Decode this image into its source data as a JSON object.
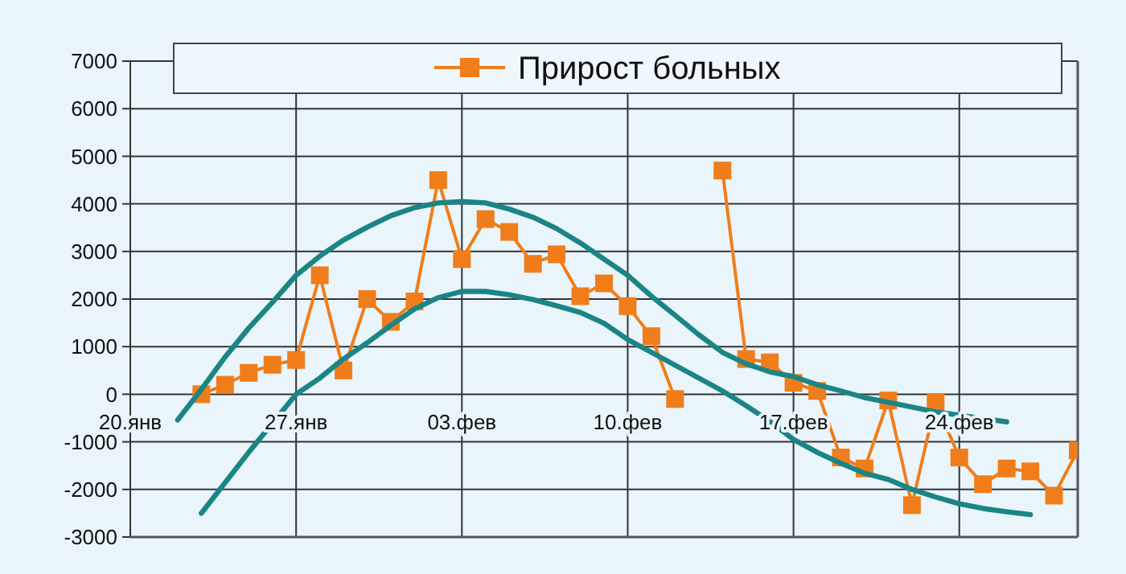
{
  "chart_data": {
    "type": "line",
    "legend": "top",
    "grid": true,
    "ylim": [
      -3000,
      7000
    ],
    "yticks": [
      -3000,
      -2000,
      -1000,
      0,
      1000,
      2000,
      3000,
      4000,
      5000,
      6000,
      7000
    ],
    "xlim": [
      "--01-20",
      "--02-29"
    ],
    "xticks": [
      {
        "value": "--01-20",
        "label": "20.янв"
      },
      {
        "value": "--01-27",
        "label": "27.янв"
      },
      {
        "value": "--02-03",
        "label": "03.фев"
      },
      {
        "value": "--02-10",
        "label": "10.фев"
      },
      {
        "value": "--02-17",
        "label": "17.фев"
      },
      {
        "value": "--02-24",
        "label": "24.фев"
      }
    ],
    "x": [
      "--01-23",
      "--01-24",
      "--01-25",
      "--01-26",
      "--01-27",
      "--01-28",
      "--01-29",
      "--01-30",
      "--01-31",
      "--02-01",
      "--02-02",
      "--02-03",
      "--02-04",
      "--02-05",
      "--02-06",
      "--02-07",
      "--02-08",
      "--02-09",
      "--02-10",
      "--02-11",
      "--02-12",
      "--02-13",
      "--02-14",
      "--02-15",
      "--02-16",
      "--02-17",
      "--02-18",
      "--02-19",
      "--02-20",
      "--02-21",
      "--02-22",
      "--02-23",
      "--02-24",
      "--02-25",
      "--02-26",
      "--02-27",
      "--02-28",
      "--02-29"
    ],
    "series": [
      {
        "name": "Прирост больных",
        "color": "#f07d1a",
        "marker": "square",
        "values": [
          0,
          200,
          450,
          620,
          720,
          2500,
          500,
          2000,
          1520,
          1950,
          4500,
          2840,
          3680,
          3410,
          2740,
          2940,
          2060,
          2330,
          1850,
          1220,
          -100,
          null,
          4700,
          740,
          670,
          240,
          70,
          -1330,
          -1560,
          -130,
          -2330,
          -170,
          -1330,
          -1890,
          -1560,
          -1620,
          -2130,
          -1180
        ]
      },
      {
        "type": "line",
        "color": "#1b8585",
        "marker": "none",
        "x": [
          "--01-22",
          "--01-23",
          "--01-24",
          "--01-25",
          "--01-26",
          "--01-27",
          "--01-28",
          "--01-29",
          "--01-30",
          "--01-31",
          "--02-01",
          "--02-02",
          "--02-03",
          "--02-04",
          "--02-05",
          "--02-06",
          "--02-07",
          "--02-08",
          "--02-09",
          "--02-10",
          "--02-11",
          "--02-12",
          "--02-13",
          "--02-14",
          "--02-15",
          "--02-16",
          "--02-17",
          "--02-18",
          "--02-19",
          "--02-20",
          "--02-21",
          "--02-22",
          "--02-23",
          "--02-24",
          "--02-25",
          "--02-26"
        ],
        "values": [
          -540,
          100,
          780,
          1390,
          1930,
          2500,
          2900,
          3240,
          3510,
          3750,
          3920,
          4020,
          4050,
          4020,
          3890,
          3720,
          3480,
          3180,
          2840,
          2500,
          2060,
          1660,
          1250,
          880,
          640,
          470,
          370,
          200,
          70,
          -70,
          -170,
          -270,
          -370,
          -440,
          -510,
          -580
        ]
      },
      {
        "type": "line",
        "color": "#1b8585",
        "marker": "none",
        "x": [
          "--01-23",
          "--01-24",
          "--01-25",
          "--01-26",
          "--01-27",
          "--01-28",
          "--01-29",
          "--01-30",
          "--01-31",
          "--02-01",
          "--02-02",
          "--02-03",
          "--02-04",
          "--02-05",
          "--02-06",
          "--02-07",
          "--02-08",
          "--02-09",
          "--02-10",
          "--02-11",
          "--02-12",
          "--02-13",
          "--02-14",
          "--02-15",
          "--02-16",
          "--02-17",
          "--02-18",
          "--02-19",
          "--02-20",
          "--02-21",
          "--02-22",
          "--02-23",
          "--02-24",
          "--02-25",
          "--02-26",
          "--02-27"
        ],
        "values": [
          -2500,
          -1860,
          -1220,
          -610,
          0,
          340,
          740,
          1080,
          1450,
          1790,
          2030,
          2160,
          2160,
          2090,
          1990,
          1860,
          1720,
          1490,
          1150,
          880,
          610,
          340,
          70,
          -240,
          -570,
          -950,
          -1220,
          -1450,
          -1660,
          -1790,
          -2000,
          -2160,
          -2300,
          -2400,
          -2470,
          -2530
        ]
      }
    ]
  }
}
